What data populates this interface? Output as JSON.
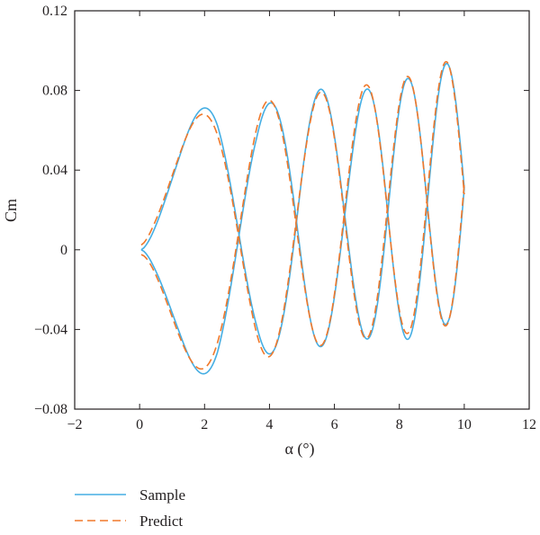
{
  "chart_data": {
    "type": "line",
    "title": "",
    "xlabel": "α (°)",
    "ylabel": "Cm",
    "xlim": [
      -2,
      12
    ],
    "ylim": [
      -0.08,
      0.12
    ],
    "xticks": [
      -2,
      0,
      2,
      4,
      6,
      8,
      10,
      12
    ],
    "yticks": [
      -0.08,
      -0.04,
      0,
      0.04,
      0.08,
      0.12
    ],
    "xtick_labels": [
      "−2",
      "0",
      "2",
      "4",
      "6",
      "8",
      "10",
      "12"
    ],
    "ytick_labels": [
      "−0.08",
      "−0.04",
      "0",
      "0.04",
      "0.08",
      "0.12"
    ],
    "grid": false,
    "legend_position": "bottom-left, below plot",
    "alpha_range": [
      0.05,
      10.0
    ],
    "envelope": {
      "alpha": [
        0.05,
        0.4,
        1.2,
        2.4,
        3.6,
        5.05,
        6.4,
        7.7,
        8.8,
        9.5,
        10.0
      ],
      "Sample_upper": [
        0.062,
        0.064,
        0.066,
        0.074,
        0.07,
        0.083,
        0.077,
        0.085,
        0.087,
        0.094,
        0.098
      ],
      "Sample_lower": [
        -0.062,
        -0.063,
        -0.061,
        -0.063,
        -0.052,
        -0.053,
        -0.042,
        -0.048,
        -0.042,
        -0.037,
        -0.036
      ],
      "Predict_upper": [
        0.06,
        0.064,
        0.065,
        0.07,
        0.074,
        0.078,
        0.081,
        0.085,
        0.089,
        0.095,
        0.097
      ],
      "Predict_lower": [
        -0.06,
        -0.062,
        -0.061,
        -0.059,
        -0.055,
        -0.05,
        -0.045,
        -0.044,
        -0.04,
        -0.038,
        -0.036
      ]
    },
    "series": [
      {
        "name": "Sample",
        "color": "#45aee3",
        "style": "solid",
        "envelope_key": "Sample",
        "phase_shift": 0.0
      },
      {
        "name": "Predict",
        "color": "#f0782a",
        "style": "dashed",
        "envelope_key": "Predict",
        "phase_shift": 0.04
      }
    ]
  }
}
